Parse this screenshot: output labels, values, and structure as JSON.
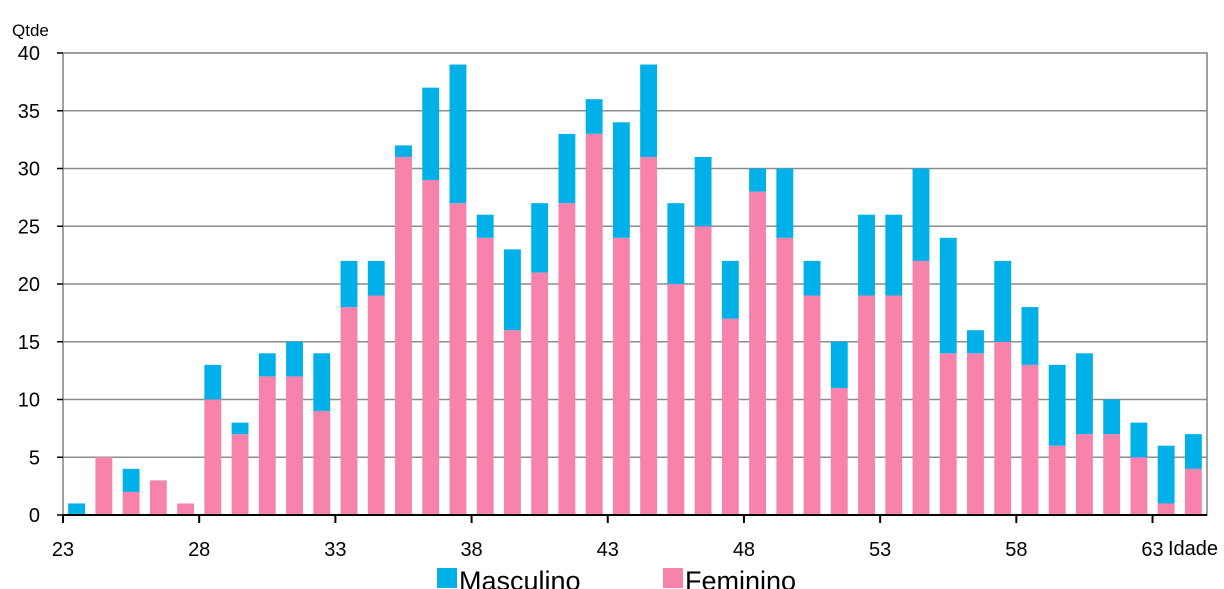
{
  "chart_data": {
    "type": "bar",
    "stacked": true,
    "ylabel": "Qtde",
    "xlabel": "Idade",
    "ylim": [
      0,
      40
    ],
    "ytick_step": 5,
    "grid": "horizontal",
    "legend": "bottom",
    "x_tick_labels": [
      "23",
      "28",
      "33",
      "38",
      "43",
      "48",
      "53",
      "58",
      "63"
    ],
    "categories": [
      23,
      24,
      25,
      26,
      27,
      28,
      29,
      30,
      31,
      32,
      33,
      34,
      35,
      36,
      37,
      38,
      39,
      40,
      41,
      42,
      43,
      44,
      45,
      46,
      47,
      48,
      49,
      50,
      51,
      52,
      53,
      54,
      55,
      56,
      57,
      58,
      59,
      60,
      61,
      62,
      63,
      64
    ],
    "series": [
      {
        "name": "Feminino",
        "color": "#f783ac",
        "values": [
          0,
          5,
          2,
          3,
          1,
          10,
          7,
          12,
          12,
          9,
          18,
          19,
          31,
          29,
          27,
          24,
          16,
          21,
          27,
          33,
          24,
          31,
          20,
          25,
          17,
          28,
          24,
          19,
          11,
          19,
          19,
          22,
          14,
          14,
          15,
          13,
          6,
          7,
          7,
          5,
          1,
          4
        ]
      },
      {
        "name": "Masculino",
        "color": "#00b0e8",
        "values": [
          1,
          0,
          2,
          0,
          0,
          3,
          1,
          2,
          3,
          5,
          4,
          3,
          1,
          8,
          12,
          2,
          7,
          6,
          6,
          3,
          10,
          8,
          7,
          6,
          5,
          2,
          6,
          3,
          4,
          7,
          7,
          8,
          10,
          2,
          7,
          5,
          7,
          7,
          3,
          3,
          5,
          3
        ]
      }
    ]
  }
}
